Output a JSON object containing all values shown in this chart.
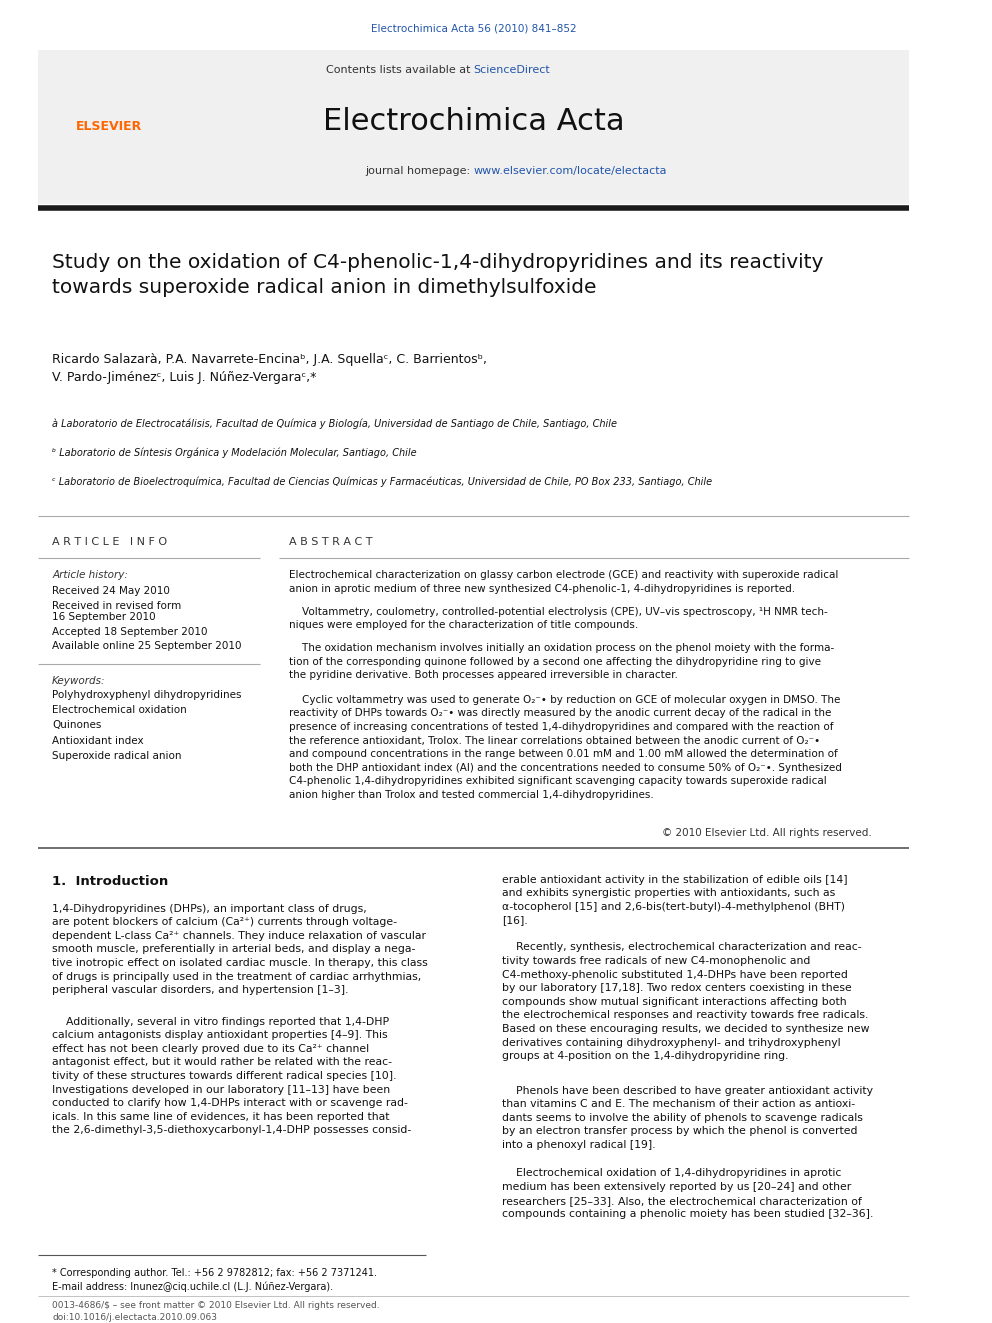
{
  "page_width": 9.92,
  "page_height": 13.23,
  "background_color": "#ffffff",
  "top_journal_line": "Electrochimica Acta 56 (2010) 841–852",
  "top_journal_color": "#2255aa",
  "header_bg": "#f0f0f0",
  "header_text1": "Contents lists available at ",
  "header_sciencedirect": "ScienceDirect",
  "header_sd_color": "#2255aa",
  "journal_name": "Electrochimica Acta",
  "journal_homepage_text": "journal homepage: ",
  "journal_url": "www.elsevier.com/locate/electacta",
  "journal_url_color": "#2255aa",
  "thick_bar_color": "#1a1a1a",
  "title": "Study on the oxidation of C4-phenolic-1,4-dihydropyridines and its reactivity\ntowards superoxide radical anion in dimethylsulfoxide",
  "authors": "Ricardo Salazarà, P.A. Navarrete-Encinaᵇ, J.A. Squellaᶜ, C. Barrientosᵇ,\nV. Pardo-Jiménezᶜ, Luis J. Núñez-Vergaraᶜ,*",
  "affil_a": "à Laboratorio de Electrocatálisis, Facultad de Química y Biología, Universidad de Santiago de Chile, Santiago, Chile",
  "affil_b": "ᵇ Laboratorio de Síntesis Orgánica y Modelación Molecular, Santiago, Chile",
  "affil_c": "ᶜ Laboratorio de Bioelectroquímica, Facultad de Ciencias Químicas y Farmacéuticas, Universidad de Chile, PO Box 233, Santiago, Chile",
  "article_info_title": "A R T I C L E   I N F O",
  "article_history_label": "Article history:",
  "received": "Received 24 May 2010",
  "revised": "Received in revised form",
  "revised2": "16 September 2010",
  "accepted": "Accepted 18 September 2010",
  "available": "Available online 25 September 2010",
  "keywords_label": "Keywords:",
  "kw1": "Polyhydroxyphenyl dihydropyridines",
  "kw2": "Electrochemical oxidation",
  "kw3": "Quinones",
  "kw4": "Antioxidant index",
  "kw5": "Superoxide radical anion",
  "abstract_title": "A B S T R A C T",
  "abstract_p1": "Electrochemical characterization on glassy carbon electrode (GCE) and reactivity with superoxide radical\nanion in aprotic medium of three new synthesized C4-phenolic-1, 4-dihydropyridines is reported.",
  "abstract_p2": "    Voltammetry, coulometry, controlled-potential electrolysis (CPE), UV–vis spectroscopy, ¹H NMR tech-\nniques were employed for the characterization of title compounds.",
  "abstract_p3": "    The oxidation mechanism involves initially an oxidation process on the phenol moiety with the forma-\ntion of the corresponding quinone followed by a second one affecting the dihydropyridine ring to give\nthe pyridine derivative. Both processes appeared irreversible in character.",
  "abstract_p4": "    Cyclic voltammetry was used to generate O₂⁻• by reduction on GCE of molecular oxygen in DMSO. The\nreactivity of DHPs towards O₂⁻• was directly measured by the anodic current decay of the radical in the\npresence of increasing concentrations of tested 1,4-dihydropyridines and compared with the reaction of\nthe reference antioxidant, Trolox. The linear correlations obtained between the anodic current of O₂⁻•\nand compound concentrations in the range between 0.01 mM and 1.00 mM allowed the determination of\nboth the DHP antioxidant index (AI) and the concentrations needed to consume 50% of O₂⁻•. Synthesized\nC4-phenolic 1,4-dihydropyridines exhibited significant scavenging capacity towards superoxide radical\nanion higher than Trolox and tested commercial 1,4-dihydropyridines.",
  "abstract_copyright": "© 2010 Elsevier Ltd. All rights reserved.",
  "section1_title": "1.  Introduction",
  "intro_p1": "1,4-Dihydropyridines (DHPs), an important class of drugs,\nare potent blockers of calcium (Ca²⁺) currents through voltage-\ndependent L-class Ca²⁺ channels. They induce relaxation of vascular\nsmooth muscle, preferentially in arterial beds, and display a nega-\ntive inotropic effect on isolated cardiac muscle. In therapy, this class\nof drugs is principally used in the treatment of cardiac arrhythmias,\nperipheral vascular disorders, and hypertension [1–3].",
  "intro_p2": "    Additionally, several in vitro findings reported that 1,4-DHP\ncalcium antagonists display antioxidant properties [4–9]. This\neffect has not been clearly proved due to its Ca²⁺ channel\nantagonist effect, but it would rather be related with the reac-\ntivity of these structures towards different radical species [10].\nInvestigations developed in our laboratory [11–13] have been\nconducted to clarify how 1,4-DHPs interact with or scavenge rad-\nicals. In this same line of evidences, it has been reported that\nthe 2,6-dimethyl-3,5-diethoxycarbonyl-1,4-DHP possesses consid-",
  "intro_p3_right": "erable antioxidant activity in the stabilization of edible oils [14]\nand exhibits synergistic properties with antioxidants, such as\nα-tocopherol [15] and 2,6-bis(tert-butyl)-4-methylphenol (BHT)\n[16].",
  "intro_p4_right": "    Recently, synthesis, electrochemical characterization and reac-\ntivity towards free radicals of new C4-monophenolic and\nC4-methoxy-phenolic substituted 1,4-DHPs have been reported\nby our laboratory [17,18]. Two redox centers coexisting in these\ncompounds show mutual significant interactions affecting both\nthe electrochemical responses and reactivity towards free radicals.\nBased on these encouraging results, we decided to synthesize new\nderivatives containing dihydroxyphenyl- and trihydroxyphenyl\ngroups at 4-position on the 1,4-dihydropyridine ring.",
  "intro_p5_right": "    Phenols have been described to have greater antioxidant activity\nthan vitamins C and E. The mechanism of their action as antioxi-\ndants seems to involve the ability of phenols to scavenge radicals\nby an electron transfer process by which the phenol is converted\ninto a phenoxyl radical [19].",
  "intro_p6_right": "    Electrochemical oxidation of 1,4-dihydropyridines in aprotic\nmedium has been extensively reported by us [20–24] and other\nresearchers [25–33]. Also, the electrochemical characterization of\ncompounds containing a phenolic moiety has been studied [32–36].",
  "footnote_star": "* Corresponding author. Tel.: +56 2 9782812; fax: +56 2 7371241.",
  "footnote_email": "E-mail address: lnunez@ciq.uchile.cl (L.J. Núñez-Vergara).",
  "bottom_issn": "0013-4686/$ – see front matter © 2010 Elsevier Ltd. All rights reserved.",
  "bottom_doi": "doi:10.1016/j.electacta.2010.09.063"
}
